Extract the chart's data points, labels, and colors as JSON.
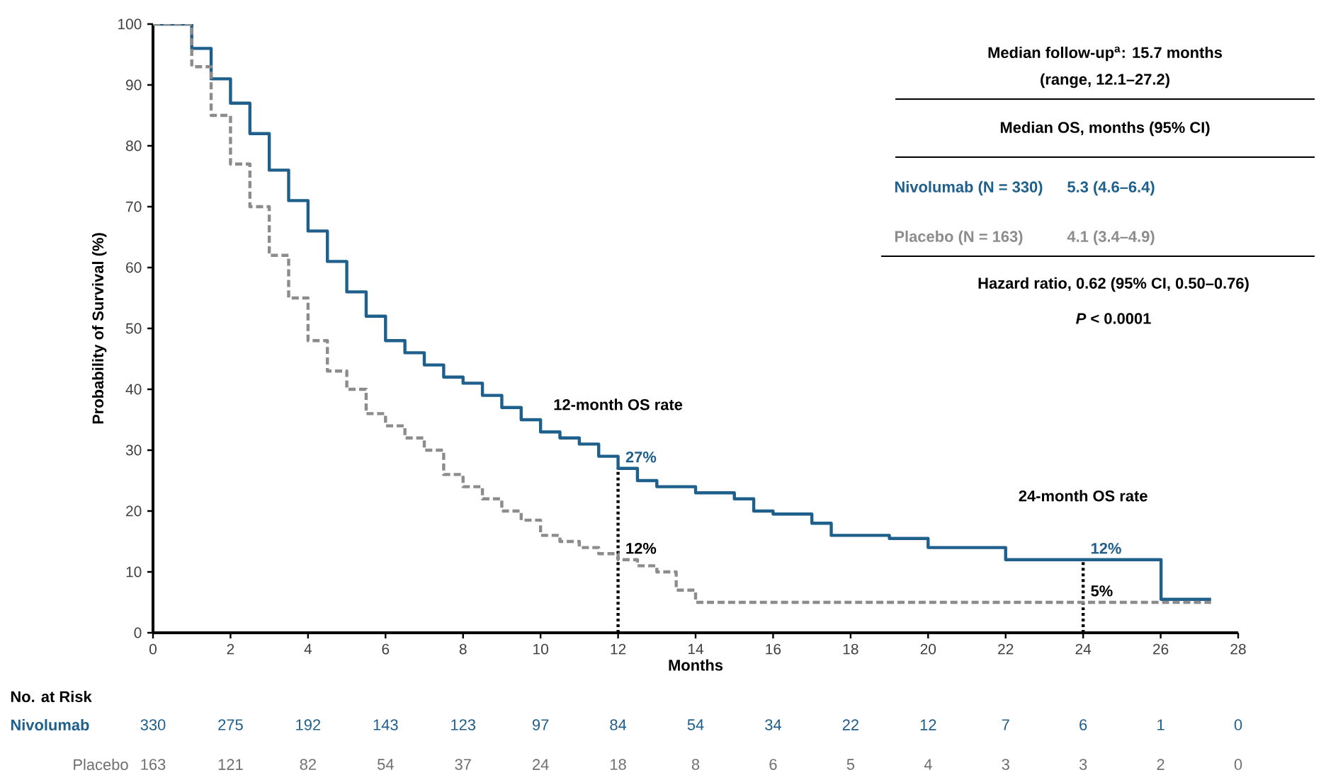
{
  "chart_data": {
    "type": "step",
    "xlabel": "Months",
    "ylabel": "Probability of Survival (%)",
    "xlim": [
      0,
      28
    ],
    "ylim": [
      0,
      100
    ],
    "xticks": [
      0,
      2,
      4,
      6,
      8,
      10,
      12,
      14,
      16,
      18,
      20,
      22,
      24,
      26,
      28
    ],
    "yticks": [
      0,
      10,
      20,
      30,
      40,
      50,
      60,
      70,
      80,
      90,
      100
    ],
    "series": [
      {
        "name": "Nivolumab",
        "color": "#1f5f8b",
        "line_style": "solid",
        "x": [
          0,
          0.7,
          1,
          1.5,
          2,
          2.5,
          3,
          3.5,
          4,
          4.5,
          5,
          5.5,
          6,
          6.5,
          7,
          7.5,
          8,
          8.5,
          9,
          9.5,
          10,
          10.5,
          11,
          11.5,
          12,
          12.5,
          13,
          14,
          15,
          15.5,
          16,
          17,
          17.5,
          18,
          19,
          20,
          21,
          22,
          24,
          25,
          26,
          26.01,
          27.3
        ],
        "values": [
          100,
          100,
          96,
          91,
          87,
          82,
          76,
          71,
          66,
          61,
          56,
          52,
          48,
          46,
          44,
          42,
          41,
          39,
          37,
          35,
          33,
          32,
          31,
          29,
          27,
          25,
          24,
          23,
          22,
          20,
          19.5,
          18,
          16,
          16,
          15.5,
          14,
          14,
          12,
          12,
          12,
          12,
          5.5,
          5.5
        ]
      },
      {
        "name": "Placebo",
        "color": "#8c8c8c",
        "line_style": "dashed",
        "x": [
          0,
          0.6,
          1,
          1.5,
          2,
          2.5,
          3,
          3.5,
          4,
          4.5,
          5,
          5.5,
          6,
          6.5,
          7,
          7.5,
          8,
          8.5,
          9,
          9.5,
          10,
          10.5,
          11,
          11.5,
          12,
          12.5,
          13,
          13.5,
          14,
          16,
          27.3
        ],
        "values": [
          100,
          100,
          93,
          85,
          77,
          70,
          62,
          55,
          48,
          43,
          40,
          36,
          34,
          32,
          30,
          26,
          24,
          22,
          20,
          18.5,
          16,
          15,
          14,
          13,
          12,
          11,
          10,
          7,
          5,
          5,
          5
        ]
      }
    ],
    "ref_lines": [
      {
        "axis": "x",
        "value": 12,
        "line_style": "dotted",
        "color": "#000000"
      },
      {
        "axis": "x",
        "value": 24,
        "line_style": "dotted",
        "color": "#000000"
      }
    ],
    "annotations": [
      "Median follow-up$^{a}$: 15.7 months",
      "(range, 12.1–27.2)",
      "Median OS, months (95% CI)",
      "Nivolumab (N = 330)",
      "5.3 (4.6–6.4)",
      "Placebo (N = 163)",
      "4.1 (3.4–4.9)",
      "Hazard ratio, 0.62 (95% CI, 0.50–0.76)",
      "*P* < 0.0001",
      "12-month OS rate",
      "24-month OS rate",
      "27%",
      "12%",
      "12%",
      "5%",
      "No. at Risk",
      "330",
      "275",
      "192",
      "143",
      "123",
      "97",
      "84",
      "54",
      "34",
      "22",
      "12",
      "7",
      "6",
      "1",
      "0",
      "163",
      "121",
      "82",
      "54",
      "37",
      "24",
      "18",
      "8",
      "6",
      "5",
      "4",
      "3",
      "3",
      "2",
      "0"
    ]
  }
}
